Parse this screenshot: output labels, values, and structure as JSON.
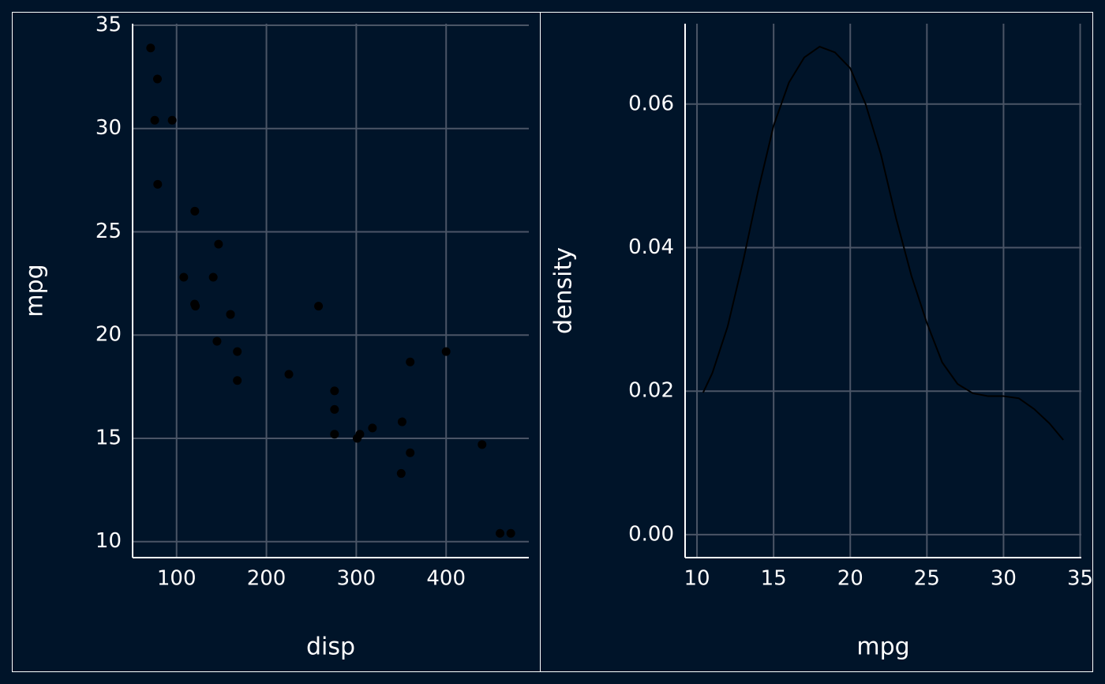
{
  "chart_data": [
    {
      "type": "scatter",
      "x_label": "disp",
      "y_label": "mpg",
      "color": "#000000",
      "grid": true,
      "x": [
        160,
        160,
        108,
        258,
        360,
        225,
        360,
        146.7,
        140.8,
        167.6,
        167.6,
        275.8,
        275.8,
        275.8,
        472,
        460,
        440,
        78.7,
        75.7,
        71.1,
        120.1,
        318,
        304,
        350,
        400,
        79,
        120.3,
        95.1,
        351,
        145,
        301,
        121
      ],
      "values": [
        21,
        21,
        22.8,
        21.4,
        18.7,
        18.1,
        14.3,
        24.4,
        22.8,
        19.2,
        17.8,
        16.4,
        17.3,
        15.2,
        10.4,
        10.4,
        14.7,
        32.4,
        30.4,
        33.9,
        21.5,
        15.5,
        15.2,
        13.3,
        19.2,
        27.3,
        26,
        30.4,
        15.8,
        19.7,
        15,
        21.4
      ],
      "xlim": [
        51.05,
        492.05
      ],
      "xticks": [
        100,
        200,
        300,
        400
      ],
      "ylim": [
        9.225,
        35.075
      ],
      "yticks": [
        10,
        15,
        20,
        25,
        30,
        35
      ]
    },
    {
      "type": "line",
      "x_label": "mpg",
      "y_label": "density",
      "color": "#000000",
      "grid": true,
      "x": [
        10.4,
        11,
        12,
        13,
        14,
        15,
        16,
        17,
        18,
        19,
        20,
        21,
        22,
        23,
        24,
        25,
        26,
        27,
        28,
        29,
        30,
        31,
        32,
        33,
        33.9
      ],
      "values": [
        0.0198,
        0.0225,
        0.029,
        0.038,
        0.048,
        0.057,
        0.063,
        0.0665,
        0.068,
        0.0672,
        0.065,
        0.06,
        0.053,
        0.044,
        0.036,
        0.0295,
        0.024,
        0.021,
        0.0197,
        0.0193,
        0.0193,
        0.019,
        0.0175,
        0.0155,
        0.0132
      ],
      "xlim": [
        9.225,
        35.075
      ],
      "xticks": [
        10,
        15,
        20,
        25,
        30,
        35
      ],
      "ylim": [
        -0.0032,
        0.0712
      ],
      "yticks": [
        {
          "value": 0,
          "label": "0.00"
        },
        0.02,
        0.04,
        0.06
      ]
    }
  ]
}
